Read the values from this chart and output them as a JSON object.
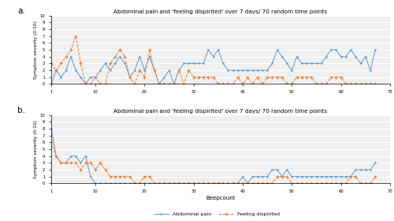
{
  "title": "Abdominal pain and 'feeling dispirited' over 7 days/ 70 random time points",
  "xlabel": "Beepcount",
  "ylabel": "Symptom severity (0-10)",
  "ylim": [
    0,
    10
  ],
  "yticks": [
    0,
    1,
    2,
    3,
    4,
    5,
    6,
    7,
    8,
    9,
    10
  ],
  "xlim": [
    1,
    70
  ],
  "xticks": [
    1,
    10,
    20,
    30,
    40,
    50,
    60,
    70
  ],
  "label_a": "Abdominal pain",
  "label_b": "Feeling dispirited",
  "color_abdominal": "#5B9BD5",
  "color_dispirited": "#ED7D31",
  "bg_color": "#EFEFEF",
  "a_abdominal": [
    0,
    2,
    1,
    2,
    4,
    2,
    1,
    0,
    1,
    1,
    2,
    3,
    2,
    3,
    4,
    3,
    1,
    2,
    4,
    2,
    4,
    2,
    0,
    1,
    2,
    0,
    2,
    3,
    3,
    3,
    3,
    3,
    5,
    4,
    5,
    3,
    2,
    2,
    2,
    2,
    2,
    2,
    2,
    2,
    2,
    3,
    5,
    4,
    3,
    2,
    4,
    3,
    3,
    3,
    3,
    3,
    4,
    5,
    5,
    4,
    4,
    5,
    4,
    3,
    4,
    2,
    5
  ],
  "a_dispirited": [
    3,
    2,
    3,
    4,
    5,
    7,
    3,
    0,
    0,
    1,
    0,
    0,
    3,
    4,
    5,
    4,
    1,
    0,
    2,
    1,
    5,
    2,
    0,
    0,
    0,
    0,
    2,
    0,
    2,
    1,
    1,
    1,
    1,
    1,
    0,
    0,
    0,
    0,
    1,
    0,
    1,
    0,
    1,
    0,
    1,
    1,
    1,
    1,
    0,
    0,
    1,
    1,
    1,
    1,
    0,
    0,
    0,
    1,
    1,
    1,
    0,
    0,
    0,
    0,
    0,
    0,
    0
  ],
  "b_abdominal": [
    8,
    4,
    3,
    3,
    4,
    4,
    3,
    4,
    1,
    0,
    0,
    0,
    0,
    0,
    0,
    0,
    0,
    0,
    0,
    0,
    0,
    0,
    0,
    0,
    0,
    0,
    0,
    0,
    0,
    0,
    0,
    0,
    0,
    0,
    0,
    0,
    0,
    0,
    0,
    1,
    0,
    1,
    1,
    1,
    1,
    2,
    2,
    1,
    2,
    1,
    1,
    1,
    1,
    1,
    1,
    1,
    1,
    1,
    1,
    1,
    1,
    1,
    2,
    2,
    2,
    2,
    3
  ],
  "b_dispirited": [
    6,
    4,
    3,
    3,
    3,
    3,
    2,
    3,
    3,
    2,
    3,
    2,
    1,
    1,
    1,
    1,
    1,
    0,
    0,
    1,
    1,
    0,
    0,
    0,
    0,
    0,
    0,
    0,
    0,
    0,
    0,
    0,
    0,
    0,
    0,
    0,
    0,
    0,
    0,
    0,
    0,
    0,
    0,
    0,
    0,
    0,
    1,
    1,
    1,
    0,
    0,
    0,
    0,
    0,
    0,
    0,
    0,
    0,
    0,
    0,
    0,
    1,
    1,
    0,
    0,
    0,
    1
  ]
}
